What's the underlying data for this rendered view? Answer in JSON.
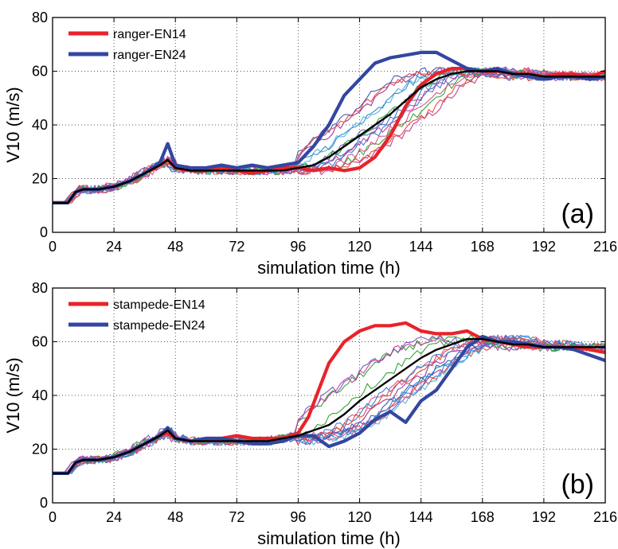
{
  "figure": {
    "colors": {
      "EN14": "#e8232a",
      "EN24": "#3346a0",
      "mean": "#000000",
      "members": [
        "#3b7fd1",
        "#c0409c",
        "#3aa23a",
        "#e84a3f",
        "#7b59c3",
        "#58b6e0",
        "#9a3c9a",
        "#4659b8",
        "#d35b8f",
        "#2d8fd0"
      ]
    }
  },
  "chart_data": [
    {
      "type": "line",
      "panel_label": "(a)",
      "xlabel": "simulation time (h)",
      "ylabel": "V10 (m/s)",
      "xlim": [
        0,
        216
      ],
      "ylim": [
        0,
        80
      ],
      "xticks": [
        0,
        24,
        48,
        72,
        96,
        120,
        144,
        168,
        192,
        216
      ],
      "yticks": [
        0,
        20,
        40,
        60,
        80
      ],
      "grid": true,
      "legend_position": "top-left",
      "series": [
        {
          "name": "ranger-EN14",
          "color": "#e8232a",
          "x": [
            0,
            6,
            9,
            12,
            18,
            24,
            30,
            36,
            42,
            45,
            48,
            54,
            60,
            66,
            72,
            78,
            84,
            90,
            96,
            102,
            108,
            114,
            120,
            126,
            132,
            138,
            144,
            150,
            156,
            162,
            168,
            174,
            180,
            186,
            192,
            198,
            204,
            210,
            216
          ],
          "y": [
            11,
            11,
            15,
            16,
            16,
            17,
            19,
            22,
            25,
            27,
            24,
            23,
            23,
            24,
            23,
            22,
            23,
            24,
            24,
            23,
            24,
            23,
            24,
            28,
            36,
            47,
            55,
            59,
            61,
            61,
            60,
            60,
            59,
            59,
            58,
            59,
            59,
            58,
            60
          ]
        },
        {
          "name": "ranger-EN24",
          "color": "#3346a0",
          "x": [
            0,
            6,
            9,
            12,
            18,
            24,
            30,
            36,
            42,
            45,
            48,
            54,
            60,
            66,
            72,
            78,
            84,
            90,
            96,
            102,
            108,
            114,
            120,
            126,
            132,
            138,
            144,
            150,
            156,
            162,
            168,
            174,
            180,
            186,
            192,
            198,
            204,
            210,
            216
          ],
          "y": [
            11,
            11,
            15,
            16,
            16,
            17,
            19,
            22,
            26,
            33,
            25,
            24,
            24,
            25,
            24,
            25,
            24,
            25,
            26,
            32,
            40,
            51,
            57,
            63,
            65,
            66,
            67,
            67,
            64,
            61,
            60,
            61,
            59,
            58,
            57,
            58,
            58,
            57,
            58
          ]
        },
        {
          "name": "",
          "color": "#000000",
          "x": [
            0,
            6,
            9,
            12,
            18,
            24,
            30,
            36,
            42,
            45,
            48,
            54,
            60,
            66,
            72,
            78,
            84,
            90,
            96,
            102,
            108,
            114,
            120,
            126,
            132,
            138,
            144,
            150,
            156,
            162,
            168,
            174,
            180,
            186,
            192,
            198,
            204,
            210,
            216
          ],
          "y": [
            11,
            11,
            15,
            16,
            16,
            17,
            19,
            22,
            25,
            27,
            24,
            23,
            23,
            23,
            23,
            23,
            23,
            23,
            24,
            25,
            28,
            32,
            36,
            40,
            44,
            49,
            54,
            57,
            59,
            60,
            60,
            60,
            59,
            59,
            58,
            58,
            58,
            58,
            58
          ]
        }
      ]
    },
    {
      "type": "line",
      "panel_label": "(b)",
      "xlabel": "simulation time (h)",
      "ylabel": "V10 (m/s)",
      "xlim": [
        0,
        216
      ],
      "ylim": [
        0,
        80
      ],
      "xticks": [
        0,
        24,
        48,
        72,
        96,
        120,
        144,
        168,
        192,
        216
      ],
      "yticks": [
        0,
        20,
        40,
        60,
        80
      ],
      "grid": true,
      "legend_position": "top-left",
      "series": [
        {
          "name": "stampede-EN14",
          "color": "#e8232a",
          "x": [
            0,
            6,
            9,
            12,
            18,
            24,
            30,
            36,
            42,
            45,
            48,
            54,
            60,
            66,
            72,
            78,
            84,
            90,
            96,
            100,
            104,
            108,
            114,
            120,
            126,
            132,
            138,
            144,
            150,
            156,
            162,
            168,
            174,
            180,
            186,
            192,
            198,
            204,
            210,
            216
          ],
          "y": [
            11,
            11,
            15,
            16,
            16,
            17,
            19,
            22,
            25,
            26,
            24,
            23,
            24,
            24,
            25,
            24,
            24,
            24,
            26,
            32,
            42,
            52,
            60,
            64,
            66,
            66,
            67,
            64,
            63,
            63,
            64,
            61,
            60,
            59,
            58,
            58,
            58,
            58,
            57,
            56
          ]
        },
        {
          "name": "stampede-EN24",
          "color": "#3346a0",
          "x": [
            0,
            6,
            9,
            12,
            18,
            24,
            30,
            36,
            42,
            45,
            48,
            54,
            60,
            66,
            72,
            78,
            84,
            90,
            96,
            102,
            108,
            114,
            120,
            126,
            132,
            138,
            144,
            150,
            156,
            162,
            168,
            174,
            180,
            186,
            192,
            198,
            204,
            210,
            216
          ],
          "y": [
            11,
            11,
            15,
            16,
            16,
            17,
            19,
            22,
            25,
            28,
            24,
            23,
            24,
            24,
            23,
            22,
            22,
            23,
            25,
            25,
            21,
            23,
            26,
            31,
            34,
            30,
            38,
            42,
            50,
            58,
            62,
            60,
            60,
            59,
            58,
            58,
            57,
            55,
            53
          ]
        },
        {
          "name": "",
          "color": "#000000",
          "x": [
            0,
            6,
            9,
            12,
            18,
            24,
            30,
            36,
            42,
            45,
            48,
            54,
            60,
            66,
            72,
            78,
            84,
            90,
            96,
            102,
            108,
            114,
            120,
            126,
            132,
            138,
            144,
            150,
            156,
            162,
            168,
            174,
            180,
            186,
            192,
            198,
            204,
            210,
            216
          ],
          "y": [
            11,
            11,
            15,
            16,
            16,
            17,
            19,
            22,
            25,
            27,
            24,
            23,
            23,
            23,
            23,
            23,
            23,
            24,
            25,
            27,
            29,
            33,
            38,
            42,
            46,
            50,
            54,
            57,
            59,
            61,
            61,
            60,
            59,
            59,
            58,
            58,
            58,
            58,
            58
          ]
        }
      ]
    }
  ]
}
